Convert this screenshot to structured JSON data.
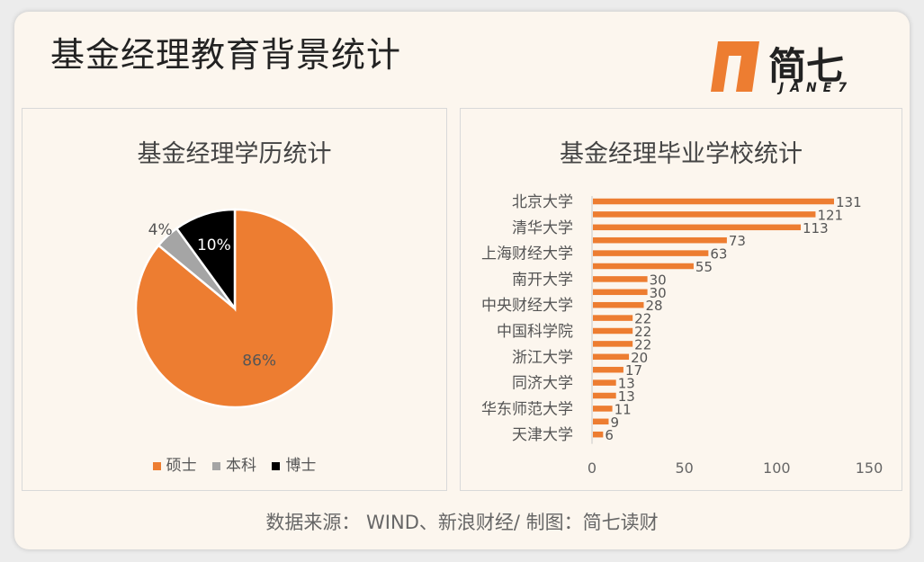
{
  "header": {
    "title": "基金经理教育背景统计",
    "logo_text": "简七",
    "logo_sub": "JANE7"
  },
  "colors": {
    "accent": "#ed7d31",
    "gray": "#a5a5a5",
    "black": "#000000",
    "background": "#fcf6ee"
  },
  "footer": {
    "source": "数据来源： WIND、新浪财经/ 制图：简七读财"
  },
  "chart_data": [
    {
      "type": "pie",
      "title": "基金经理学历统计",
      "slices": [
        {
          "name": "硕士",
          "value": 86,
          "label": "86%",
          "color": "#ed7d31"
        },
        {
          "name": "本科",
          "value": 4,
          "label": "4%",
          "color": "#a5a5a5"
        },
        {
          "name": "博士",
          "value": 10,
          "label": "10%",
          "color": "#000000"
        }
      ],
      "legend_position": "bottom"
    },
    {
      "type": "bar",
      "orientation": "horizontal",
      "title": "基金经理毕业学校统计",
      "categories": [
        "北京大学",
        "",
        "清华大学",
        "",
        "上海财经大学",
        "",
        "南开大学",
        "",
        "中央财经大学",
        "",
        "中国科学院",
        "",
        "浙江大学",
        "",
        "同济大学",
        "",
        "华东师范大学",
        "",
        "天津大学"
      ],
      "values": [
        131,
        121,
        113,
        73,
        63,
        55,
        30,
        30,
        28,
        22,
        22,
        22,
        20,
        17,
        13,
        13,
        11,
        9,
        6
      ],
      "xlim": [
        0,
        150
      ],
      "xticks": [
        0,
        50,
        100,
        150
      ],
      "color": "#ed7d31",
      "grid": false
    }
  ]
}
